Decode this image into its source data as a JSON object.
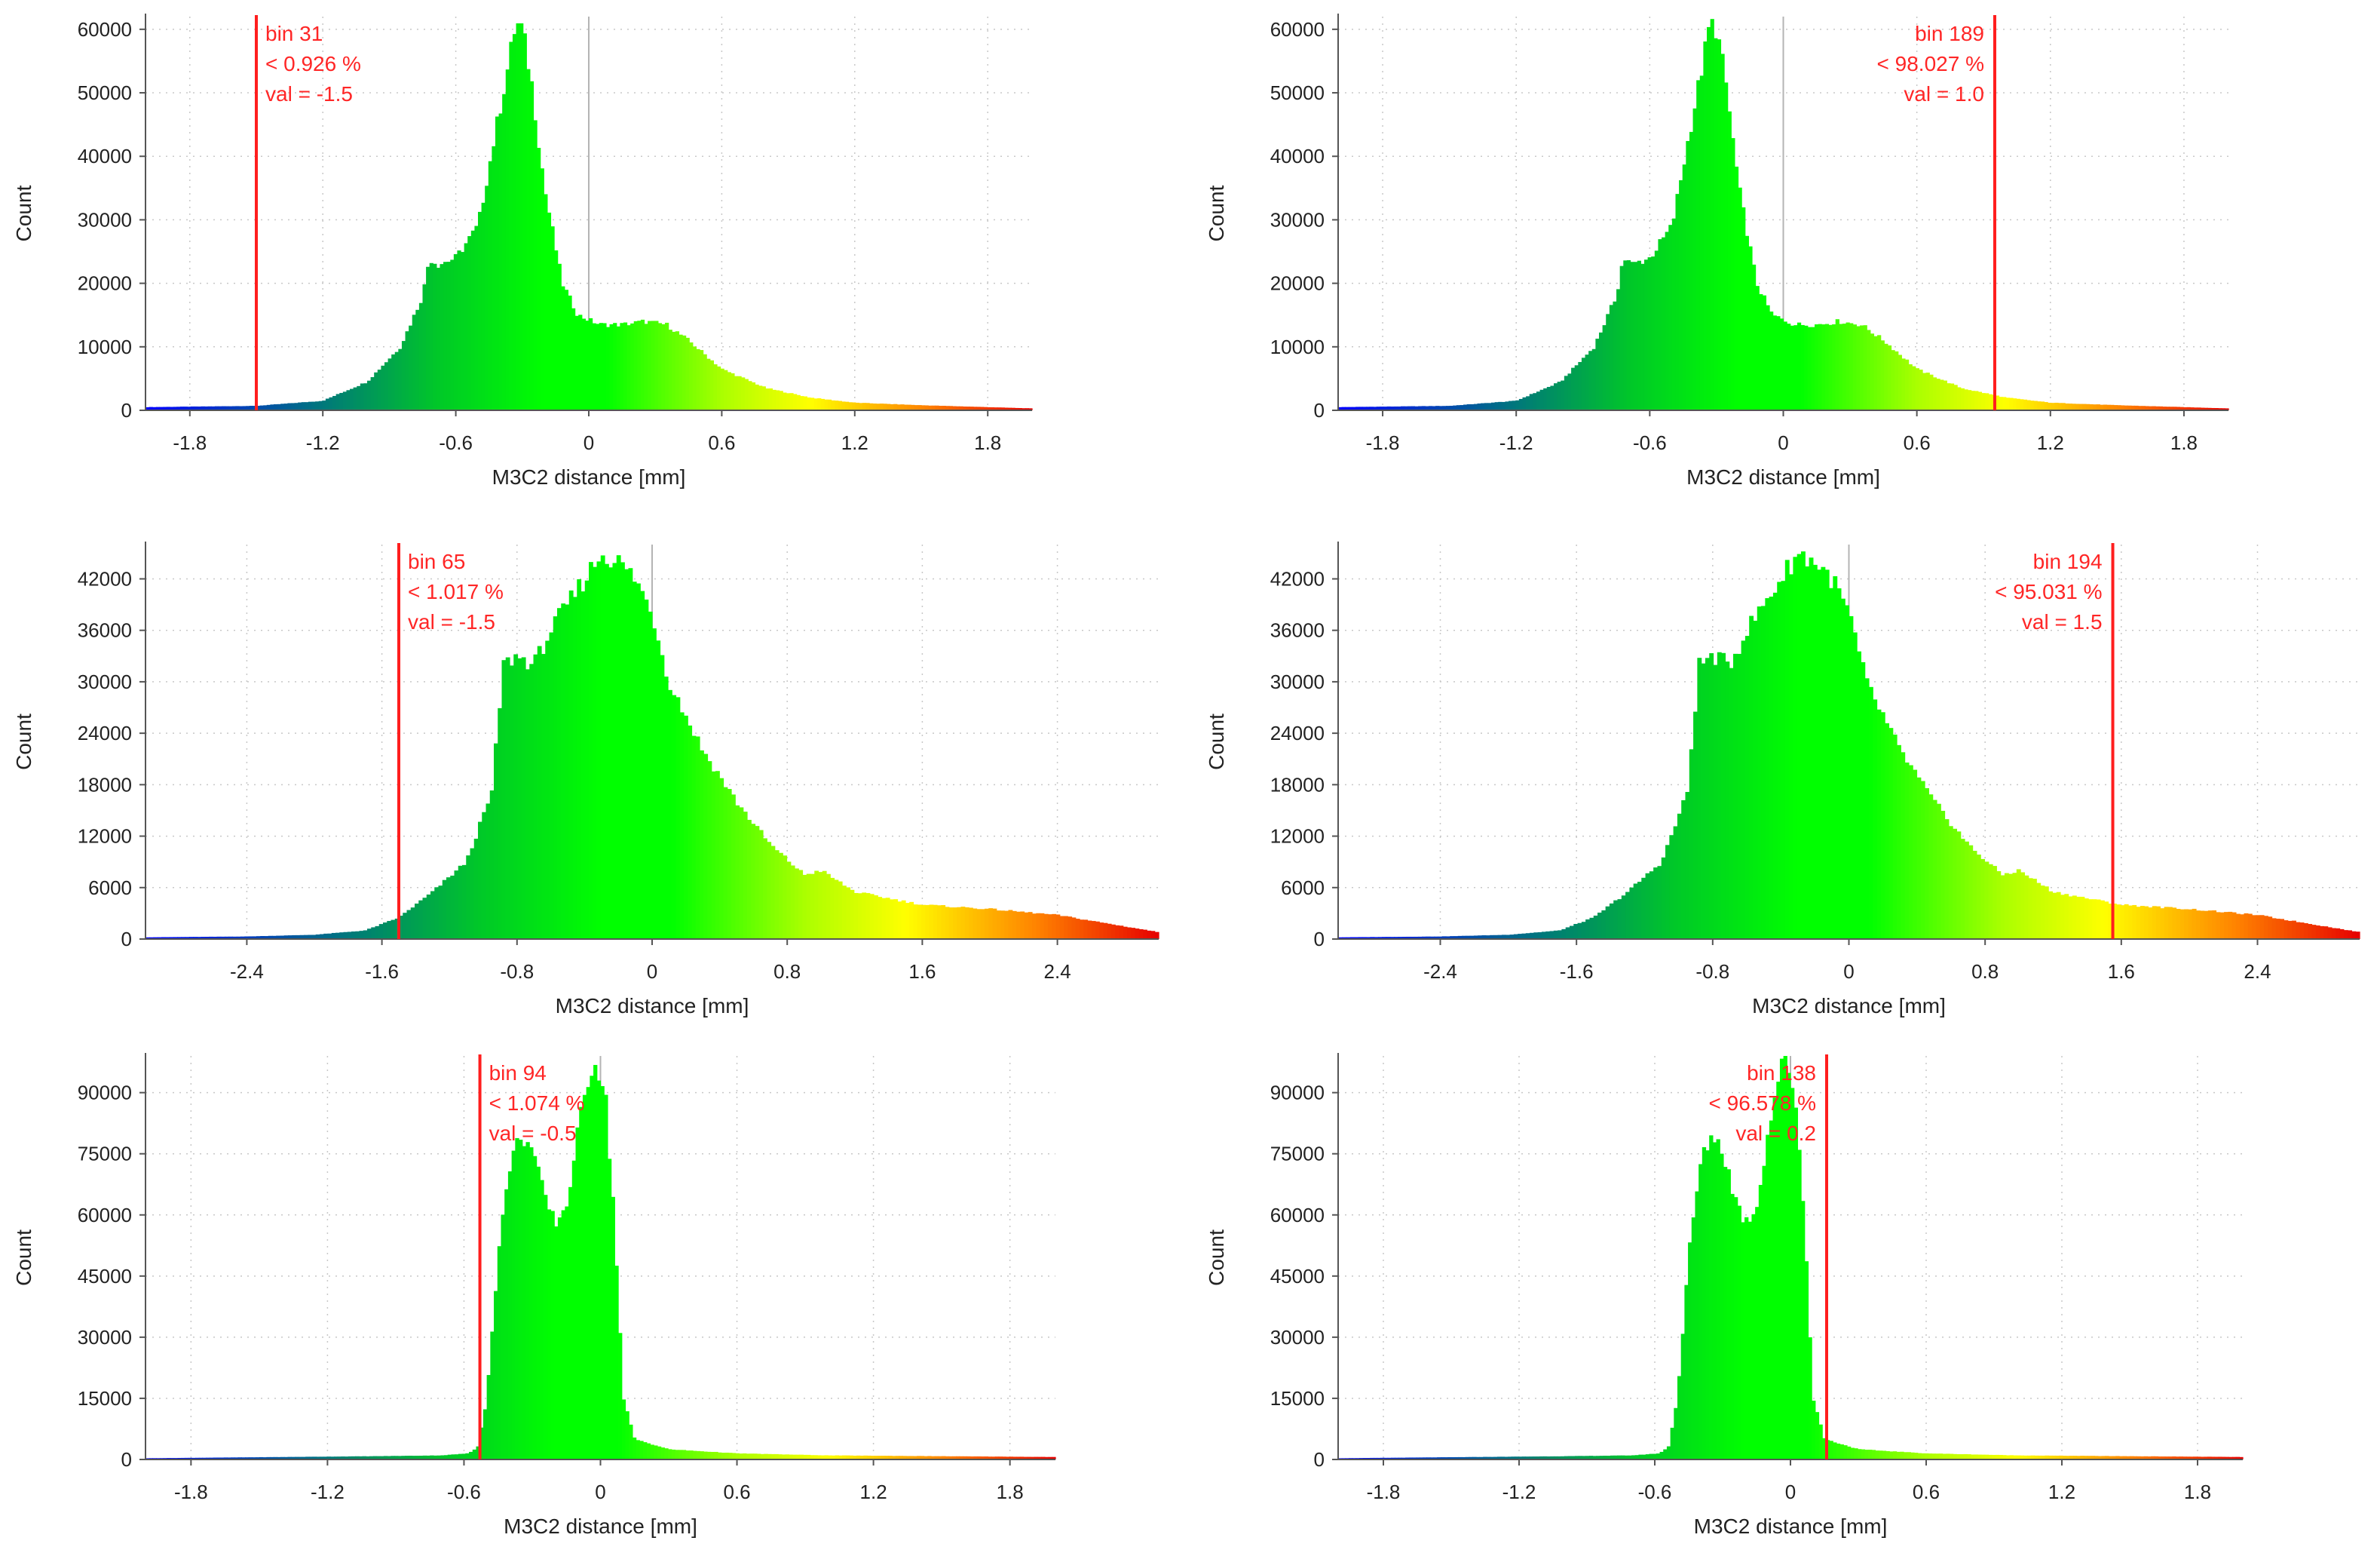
{
  "chart_data": [
    {
      "type": "bar",
      "title": "",
      "xlabel": "M3C2 distance [mm]",
      "ylabel": "Count",
      "xlim": [
        -2.0,
        2.0
      ],
      "ylim": [
        0,
        62000
      ],
      "xticks": [
        -1.8,
        -1.2,
        -0.6,
        0,
        0.6,
        1.2,
        1.8
      ],
      "xtick_labels": [
        "-1.8",
        "-1.2",
        "-0.6",
        "0",
        "0.6",
        "1.2",
        "1.8"
      ],
      "yticks": [
        0,
        10000,
        20000,
        30000,
        40000,
        50000,
        60000
      ],
      "ytick_labels": [
        "0",
        "10000",
        "20000",
        "30000",
        "40000",
        "50000",
        "60000"
      ],
      "grid": true,
      "color_range": [
        -2.0,
        2.0
      ],
      "distribution": {
        "x": [
          -2.0,
          -1.5,
          -1.2,
          -1.0,
          -0.85,
          -0.75,
          -0.72,
          -0.68,
          -0.6,
          -0.5,
          -0.42,
          -0.36,
          -0.33,
          -0.3,
          -0.26,
          -0.2,
          -0.12,
          -0.05,
          0.05,
          0.15,
          0.25,
          0.35,
          0.45,
          0.6,
          0.8,
          1.0,
          1.2,
          1.5,
          2.0
        ],
        "count": [
          500,
          700,
          1500,
          4500,
          10000,
          18000,
          24000,
          23000,
          24000,
          29000,
          44000,
          55000,
          61000,
          60000,
          52000,
          35000,
          20000,
          15000,
          13500,
          13500,
          14000,
          13500,
          11000,
          6500,
          3500,
          2000,
          1200,
          800,
          300
        ]
      },
      "annotation": {
        "lines": [
          "bin 31",
          "< 0.926 %",
          "val = -1.5"
        ],
        "marker_x": -1.5,
        "text_side": "right"
      }
    },
    {
      "type": "bar",
      "title": "",
      "xlabel": "M3C2 distance [mm]",
      "ylabel": "Count",
      "xlim": [
        -2.0,
        2.0
      ],
      "ylim": [
        0,
        62000
      ],
      "xticks": [
        -1.8,
        -1.2,
        -0.6,
        0,
        0.6,
        1.2,
        1.8
      ],
      "xtick_labels": [
        "-1.8",
        "-1.2",
        "-0.6",
        "0",
        "0.6",
        "1.2",
        "1.8"
      ],
      "yticks": [
        0,
        10000,
        20000,
        30000,
        40000,
        50000,
        60000
      ],
      "ytick_labels": [
        "0",
        "10000",
        "20000",
        "30000",
        "40000",
        "50000",
        "60000"
      ],
      "grid": true,
      "color_range": [
        -2.0,
        2.0
      ],
      "distribution": {
        "x": [
          -2.0,
          -1.5,
          -1.2,
          -1.0,
          -0.85,
          -0.75,
          -0.72,
          -0.68,
          -0.6,
          -0.5,
          -0.42,
          -0.36,
          -0.33,
          -0.3,
          -0.26,
          -0.2,
          -0.12,
          -0.05,
          0.05,
          0.15,
          0.25,
          0.35,
          0.45,
          0.6,
          0.8,
          1.0,
          1.2,
          1.5,
          2.0
        ],
        "count": [
          500,
          700,
          1500,
          4500,
          10000,
          18000,
          24000,
          23000,
          24000,
          29000,
          44000,
          55000,
          61000,
          60000,
          52000,
          35000,
          20000,
          15000,
          13500,
          13500,
          14000,
          13500,
          11000,
          6500,
          3500,
          2000,
          1200,
          800,
          300
        ]
      },
      "annotation": {
        "lines": [
          "bin 189",
          "< 98.027 %",
          "val = 1.0"
        ],
        "marker_x": 0.95,
        "text_side": "left"
      }
    },
    {
      "type": "bar",
      "title": "",
      "xlabel": "M3C2 distance [mm]",
      "ylabel": "Count",
      "xlim": [
        -3.0,
        3.0
      ],
      "ylim": [
        0,
        46000
      ],
      "xticks": [
        -2.4,
        -1.6,
        -0.8,
        0,
        0.8,
        1.6,
        2.4
      ],
      "xtick_labels": [
        "-2.4",
        "-1.6",
        "-0.8",
        "0",
        "0.8",
        "1.6",
        "2.4"
      ],
      "yticks": [
        0,
        6000,
        12000,
        18000,
        24000,
        30000,
        36000,
        42000
      ],
      "ytick_labels": [
        "0",
        "6000",
        "12000",
        "18000",
        "24000",
        "30000",
        "36000",
        "42000"
      ],
      "grid": true,
      "color_range": [
        -3.0,
        3.0
      ],
      "distribution": {
        "x": [
          -3.0,
          -2.4,
          -2.0,
          -1.7,
          -1.5,
          -1.3,
          -1.1,
          -0.95,
          -0.88,
          -0.8,
          -0.7,
          -0.6,
          -0.5,
          -0.4,
          -0.3,
          -0.2,
          -0.1,
          0.0,
          0.1,
          0.3,
          0.5,
          0.7,
          0.9,
          1.0,
          1.2,
          1.6,
          2.0,
          2.4,
          2.7,
          3.0
        ],
        "count": [
          200,
          300,
          500,
          1000,
          2500,
          5500,
          9000,
          17000,
          32000,
          33000,
          32000,
          36000,
          39000,
          42000,
          45000,
          44000,
          42000,
          38000,
          30000,
          22000,
          16000,
          11000,
          7500,
          8000,
          5500,
          4000,
          3500,
          2800,
          1800,
          800
        ]
      },
      "annotation": {
        "lines": [
          "bin 65",
          "< 1.017 %",
          "val = -1.5"
        ],
        "marker_x": -1.5,
        "text_side": "right"
      }
    },
    {
      "type": "bar",
      "title": "",
      "xlabel": "M3C2 distance [mm]",
      "ylabel": "Count",
      "xlim": [
        -3.0,
        3.0
      ],
      "ylim": [
        0,
        46000
      ],
      "xticks": [
        -2.4,
        -1.6,
        -0.8,
        0,
        0.8,
        1.6,
        2.4
      ],
      "xtick_labels": [
        "-2.4",
        "-1.6",
        "-0.8",
        "0",
        "0.8",
        "1.6",
        "2.4"
      ],
      "yticks": [
        0,
        6000,
        12000,
        18000,
        24000,
        30000,
        36000,
        42000
      ],
      "ytick_labels": [
        "0",
        "6000",
        "12000",
        "18000",
        "24000",
        "30000",
        "36000",
        "42000"
      ],
      "grid": true,
      "color_range": [
        -3.0,
        3.0
      ],
      "distribution": {
        "x": [
          -3.0,
          -2.4,
          -2.0,
          -1.7,
          -1.5,
          -1.3,
          -1.1,
          -0.95,
          -0.88,
          -0.8,
          -0.7,
          -0.6,
          -0.5,
          -0.4,
          -0.3,
          -0.2,
          -0.1,
          0.0,
          0.1,
          0.3,
          0.5,
          0.7,
          0.9,
          1.0,
          1.2,
          1.6,
          2.0,
          2.4,
          2.7,
          3.0
        ],
        "count": [
          200,
          300,
          500,
          1000,
          2500,
          5500,
          9000,
          17000,
          32000,
          33000,
          32000,
          36000,
          39000,
          42000,
          45000,
          44000,
          42000,
          38000,
          30000,
          22000,
          16000,
          11000,
          7500,
          8000,
          5500,
          4000,
          3500,
          2800,
          1800,
          800
        ]
      },
      "annotation": {
        "lines": [
          "bin 194",
          "< 95.031 %",
          "val = 1.5"
        ],
        "marker_x": 1.55,
        "text_side": "left"
      }
    },
    {
      "type": "bar",
      "title": "",
      "xlabel": "M3C2 distance [mm]",
      "ylabel": "Count",
      "xlim": [
        -2.0,
        2.0
      ],
      "ylim": [
        0,
        99000
      ],
      "xticks": [
        -1.8,
        -1.2,
        -0.6,
        0,
        0.6,
        1.2,
        1.8
      ],
      "xtick_labels": [
        "-1.8",
        "-1.2",
        "-0.6",
        "0",
        "0.6",
        "1.2",
        "1.8"
      ],
      "yticks": [
        0,
        15000,
        30000,
        45000,
        60000,
        75000,
        90000
      ],
      "ytick_labels": [
        "0",
        "15000",
        "30000",
        "45000",
        "60000",
        "75000",
        "90000"
      ],
      "grid": true,
      "color_range": [
        -2.0,
        2.0
      ],
      "distribution": {
        "x": [
          -2.0,
          -1.0,
          -0.7,
          -0.58,
          -0.54,
          -0.5,
          -0.45,
          -0.4,
          -0.35,
          -0.3,
          -0.25,
          -0.2,
          -0.15,
          -0.1,
          -0.05,
          -0.02,
          0.02,
          0.06,
          0.1,
          0.15,
          0.3,
          0.6,
          1.0,
          2.0
        ],
        "count": [
          300,
          800,
          1000,
          1500,
          3000,
          15000,
          50000,
          72000,
          80000,
          76000,
          65000,
          58000,
          62000,
          80000,
          95000,
          98000,
          90000,
          60000,
          15000,
          5000,
          2500,
          1500,
          1000,
          600
        ]
      },
      "annotation": {
        "lines": [
          "bin 94",
          "< 1.074 %",
          "val = -0.5"
        ],
        "marker_x": -0.53,
        "text_side": "right"
      }
    },
    {
      "type": "bar",
      "title": "",
      "xlabel": "M3C2 distance [mm]",
      "ylabel": "Count",
      "xlim": [
        -2.0,
        2.0
      ],
      "ylim": [
        0,
        99000
      ],
      "xticks": [
        -1.8,
        -1.2,
        -0.6,
        0,
        0.6,
        1.2,
        1.8
      ],
      "xtick_labels": [
        "-1.8",
        "-1.2",
        "-0.6",
        "0",
        "0.6",
        "1.2",
        "1.8"
      ],
      "yticks": [
        0,
        15000,
        30000,
        45000,
        60000,
        75000,
        90000
      ],
      "ytick_labels": [
        "0",
        "15000",
        "30000",
        "45000",
        "60000",
        "75000",
        "90000"
      ],
      "grid": true,
      "color_range": [
        -2.0,
        2.0
      ],
      "distribution": {
        "x": [
          -2.0,
          -1.0,
          -0.7,
          -0.58,
          -0.54,
          -0.5,
          -0.45,
          -0.4,
          -0.35,
          -0.3,
          -0.25,
          -0.2,
          -0.15,
          -0.1,
          -0.05,
          -0.02,
          0.02,
          0.06,
          0.1,
          0.15,
          0.3,
          0.6,
          1.0,
          2.0
        ],
        "count": [
          300,
          800,
          1000,
          1500,
          3000,
          15000,
          50000,
          72000,
          80000,
          76000,
          65000,
          58000,
          62000,
          80000,
          95000,
          98000,
          90000,
          60000,
          15000,
          5000,
          2500,
          1500,
          1000,
          600
        ]
      },
      "annotation": {
        "lines": [
          "bin 138",
          "< 96.578 %",
          "val = 0.2"
        ],
        "marker_x": 0.16,
        "text_side": "left"
      }
    }
  ]
}
